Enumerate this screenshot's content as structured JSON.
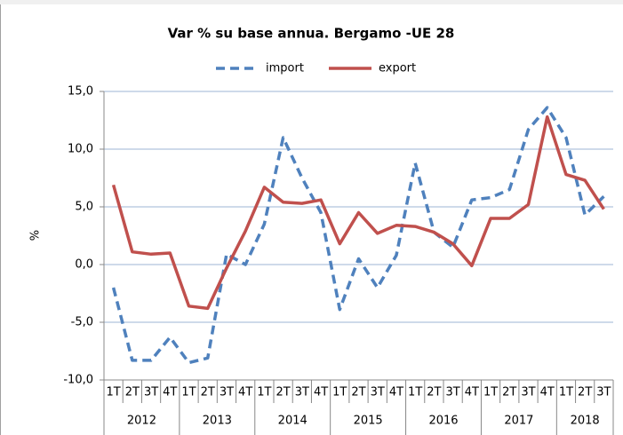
{
  "chart_data": {
    "type": "line",
    "title": "Var % su base annua. Bergamo -UE 28",
    "y_label": "%",
    "categories": [
      "1T",
      "2T",
      "3T",
      "4T",
      "1T",
      "2T",
      "3T",
      "4T",
      "1T",
      "2T",
      "3T",
      "4T",
      "1T",
      "2T",
      "3T",
      "4T",
      "1T",
      "2T",
      "3T",
      "4T",
      "1T",
      "2T",
      "3T",
      "4T",
      "1T",
      "2T",
      "3T"
    ],
    "years": [
      "2012",
      "2013",
      "2014",
      "2015",
      "2016",
      "2017",
      "2018"
    ],
    "series": [
      {
        "name": "import",
        "color": "#4f81bd",
        "dash": true,
        "values": [
          -2.0,
          -8.3,
          -8.3,
          -6.3,
          -8.5,
          -8.1,
          0.9,
          0.0,
          3.5,
          11.0,
          7.5,
          4.5,
          -3.9,
          0.5,
          -2.0,
          0.8,
          8.8,
          2.8,
          1.5,
          5.6,
          5.8,
          6.5,
          11.7,
          13.6,
          11.0,
          4.3,
          5.9
        ]
      },
      {
        "name": "export",
        "color": "#c0504d",
        "dash": false,
        "values": [
          6.9,
          1.1,
          0.9,
          1.0,
          -3.6,
          -3.8,
          -0.3,
          2.9,
          6.7,
          5.4,
          5.3,
          5.6,
          1.8,
          4.5,
          2.7,
          3.4,
          3.3,
          2.8,
          1.8,
          -0.1,
          4.0,
          4.0,
          5.2,
          12.8,
          7.8,
          7.3,
          4.8
        ]
      }
    ],
    "ylim": [
      -10,
      15
    ],
    "yticks": [
      {
        "value": -10,
        "label": "-10,0"
      },
      {
        "value": -5,
        "label": "-5,0"
      },
      {
        "value": 0,
        "label": "0,0"
      },
      {
        "value": 5,
        "label": "5,0"
      },
      {
        "value": 10,
        "label": "10,0"
      },
      {
        "value": 15,
        "label": "15,0"
      }
    ],
    "grid": true,
    "legend": "top"
  }
}
